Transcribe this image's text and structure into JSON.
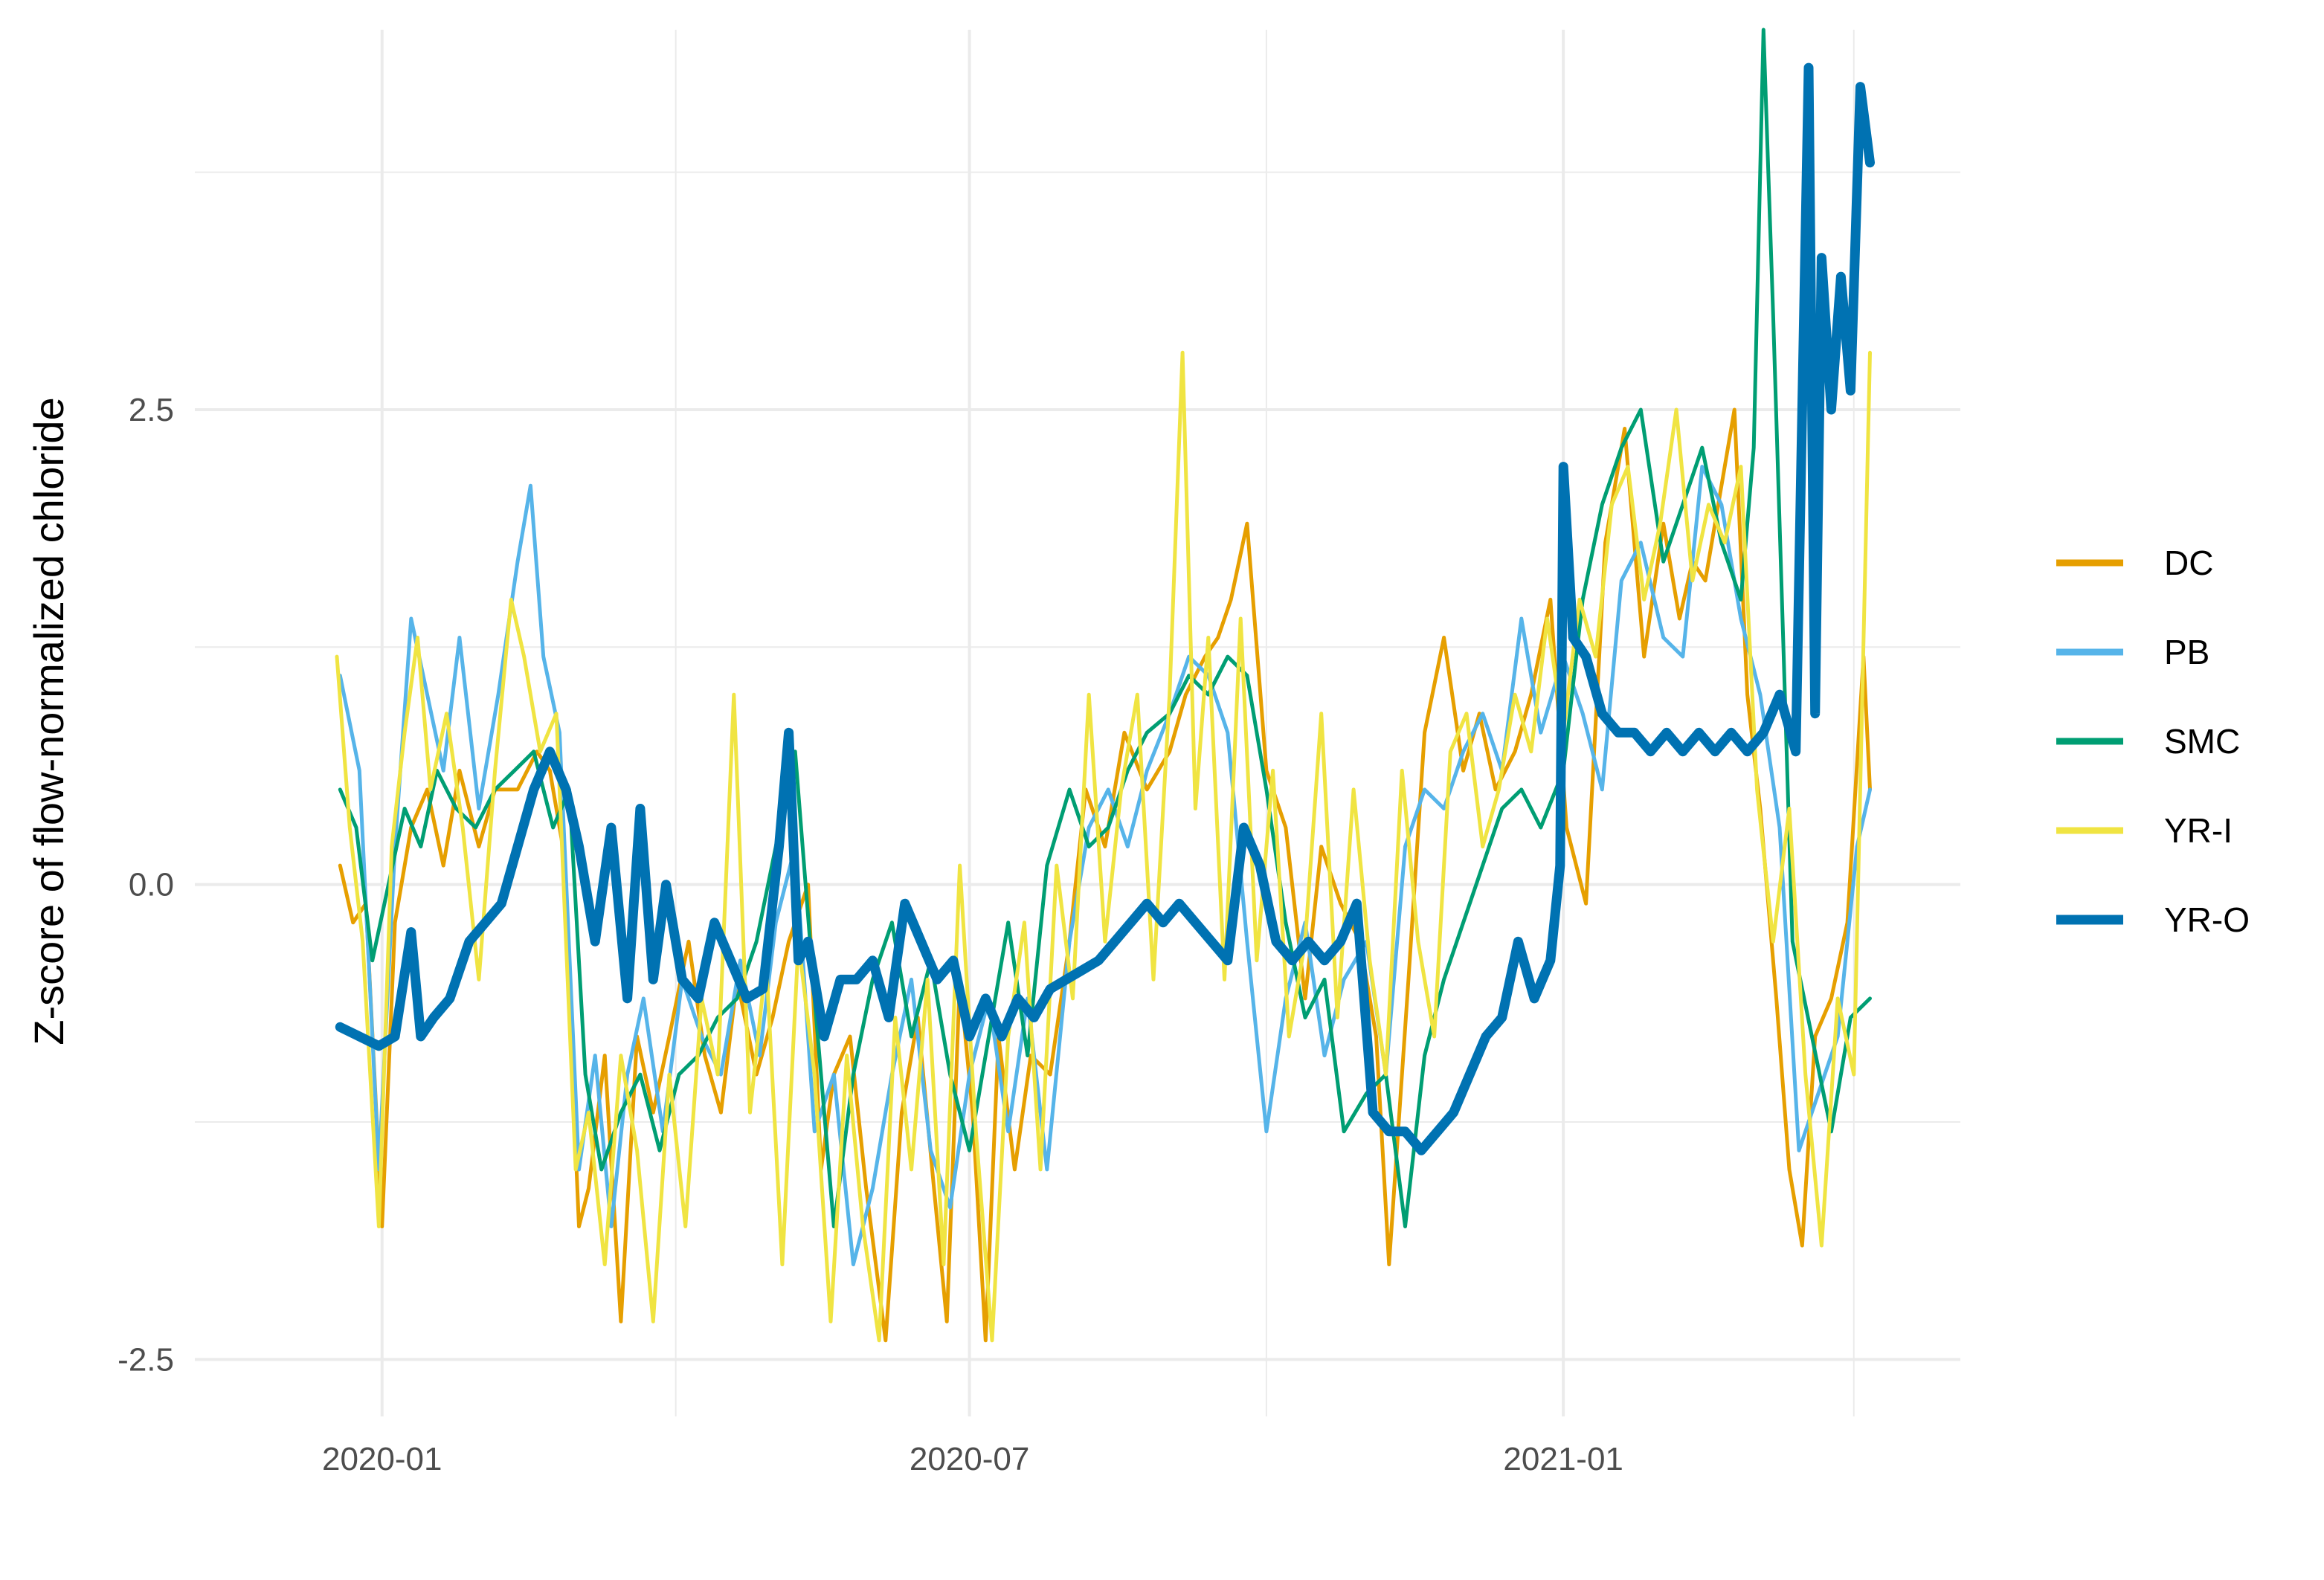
{
  "chart_data": {
    "type": "line",
    "xlabel": "",
    "ylabel": "Z-score of flow-normalized chloride",
    "x_ticks": [
      "2020-01",
      "2020-07",
      "2021-01"
    ],
    "x_tick_dates": [
      "2020-01-01",
      "2020-07-01",
      "2021-01-01"
    ],
    "x_minor_dates": [
      "2020-04-01",
      "2020-10-01",
      "2021-04-01"
    ],
    "xlim": [
      "2019-11-04",
      "2021-05-04"
    ],
    "y_ticks": [
      -2.5,
      0.0,
      2.5
    ],
    "y_tick_labels": [
      "-2.5",
      "0.0",
      "2.5"
    ],
    "y_minor": [
      -1.25,
      1.25,
      3.75
    ],
    "ylim": [
      -2.8,
      4.5
    ],
    "grid": true,
    "legend_position": "right",
    "series": [
      {
        "name": "DC",
        "color": "#E69F00",
        "x": [
          "2019-12-19",
          "2019-12-23",
          "2019-12-27",
          "2020-01-01",
          "2020-01-05",
          "2020-01-10",
          "2020-01-15",
          "2020-01-20",
          "2020-01-25",
          "2020-01-31",
          "2020-02-05",
          "2020-02-12",
          "2020-02-18",
          "2020-02-22",
          "2020-02-26",
          "2020-03-02",
          "2020-03-05",
          "2020-03-10",
          "2020-03-15",
          "2020-03-20",
          "2020-03-25",
          "2020-03-30",
          "2020-04-05",
          "2020-04-10",
          "2020-04-15",
          "2020-04-20",
          "2020-04-26",
          "2020-05-01",
          "2020-05-06",
          "2020-05-12",
          "2020-05-16",
          "2020-05-20",
          "2020-05-25",
          "2020-05-30",
          "2020-06-05",
          "2020-06-10",
          "2020-06-15",
          "2020-06-20",
          "2020-06-24",
          "2020-06-28",
          "2020-07-02",
          "2020-07-06",
          "2020-07-10",
          "2020-07-15",
          "2020-07-20",
          "2020-07-26",
          "2020-08-01",
          "2020-08-06",
          "2020-08-12",
          "2020-08-18",
          "2020-08-25",
          "2020-09-01",
          "2020-09-06",
          "2020-09-12",
          "2020-09-16",
          "2020-09-20",
          "2020-09-25",
          "2020-10-01",
          "2020-10-07",
          "2020-10-13",
          "2020-10-18",
          "2020-10-24",
          "2020-10-30",
          "2020-11-04",
          "2020-11-08",
          "2020-11-14",
          "2020-11-19",
          "2020-11-25",
          "2020-12-01",
          "2020-12-06",
          "2020-12-11",
          "2020-12-17",
          "2020-12-22",
          "2020-12-28",
          "2021-01-02",
          "2021-01-08",
          "2021-01-14",
          "2021-01-20",
          "2021-01-26",
          "2021-02-01",
          "2021-02-06",
          "2021-02-10",
          "2021-02-14",
          "2021-02-19",
          "2021-02-23",
          "2021-02-27",
          "2021-03-03",
          "2021-03-08",
          "2021-03-12",
          "2021-03-16",
          "2021-03-20",
          "2021-03-25",
          "2021-03-30",
          "2021-04-04",
          "2021-04-06"
        ],
        "values": [
          0.1,
          -0.2,
          -0.1,
          -1.8,
          -0.2,
          0.3,
          0.5,
          0.1,
          0.6,
          0.2,
          0.5,
          0.5,
          0.7,
          0.6,
          0.2,
          -1.8,
          -1.6,
          -0.9,
          -2.3,
          -0.8,
          -1.2,
          -0.8,
          -0.3,
          -0.9,
          -1.2,
          -0.5,
          -1.0,
          -0.7,
          -0.3,
          0.0,
          -1.5,
          -1.0,
          -0.8,
          -1.6,
          -2.4,
          -1.2,
          -0.7,
          -1.6,
          -2.3,
          -0.5,
          -1.2,
          -2.4,
          -0.8,
          -1.5,
          -0.9,
          -1.0,
          -0.3,
          0.5,
          0.2,
          0.8,
          0.5,
          0.7,
          1.0,
          1.2,
          1.3,
          1.5,
          1.9,
          0.6,
          0.3,
          -0.6,
          0.2,
          -0.1,
          -0.3,
          -0.8,
          -2.0,
          -0.5,
          0.8,
          1.3,
          0.6,
          0.9,
          0.5,
          0.7,
          1.0,
          1.5,
          0.3,
          -0.1,
          1.8,
          2.4,
          1.2,
          1.9,
          1.4,
          1.7,
          1.6,
          2.1,
          2.5,
          1.0,
          0.4,
          -0.6,
          -1.5,
          -1.9,
          -0.8,
          -0.6,
          -0.2,
          1.2,
          0.5
        ]
      },
      {
        "name": "PB",
        "color": "#56B4E9",
        "x": [
          "2019-12-19",
          "2019-12-25",
          "2019-12-31",
          "2020-01-05",
          "2020-01-10",
          "2020-01-15",
          "2020-01-20",
          "2020-01-25",
          "2020-01-31",
          "2020-02-06",
          "2020-02-12",
          "2020-02-16",
          "2020-02-20",
          "2020-02-25",
          "2020-03-02",
          "2020-03-07",
          "2020-03-12",
          "2020-03-17",
          "2020-03-22",
          "2020-03-28",
          "2020-04-03",
          "2020-04-09",
          "2020-04-15",
          "2020-04-21",
          "2020-04-27",
          "2020-05-02",
          "2020-05-08",
          "2020-05-14",
          "2020-05-20",
          "2020-05-26",
          "2020-06-01",
          "2020-06-07",
          "2020-06-13",
          "2020-06-19",
          "2020-06-25",
          "2020-07-01",
          "2020-07-07",
          "2020-07-13",
          "2020-07-19",
          "2020-07-25",
          "2020-08-01",
          "2020-08-07",
          "2020-08-13",
          "2020-08-19",
          "2020-08-25",
          "2020-09-01",
          "2020-09-07",
          "2020-09-13",
          "2020-09-19",
          "2020-09-25",
          "2020-10-01",
          "2020-10-07",
          "2020-10-13",
          "2020-10-19",
          "2020-10-25",
          "2020-11-01",
          "2020-11-07",
          "2020-11-13",
          "2020-11-19",
          "2020-11-25",
          "2020-12-01",
          "2020-12-07",
          "2020-12-13",
          "2020-12-19",
          "2020-12-25",
          "2021-01-01",
          "2021-01-07",
          "2021-01-13",
          "2021-01-19",
          "2021-01-25",
          "2021-02-01",
          "2021-02-07",
          "2021-02-13",
          "2021-02-19",
          "2021-02-25",
          "2021-03-03",
          "2021-03-09",
          "2021-03-15",
          "2021-03-21",
          "2021-03-27",
          "2021-04-02",
          "2021-04-06"
        ],
        "values": [
          1.1,
          0.6,
          -1.5,
          0.2,
          1.4,
          1.0,
          0.6,
          1.3,
          0.4,
          1.0,
          1.7,
          2.1,
          1.2,
          0.8,
          -1.5,
          -0.9,
          -1.8,
          -1.0,
          -0.6,
          -1.3,
          -0.5,
          -0.8,
          -1.0,
          -0.4,
          -0.9,
          -0.2,
          0.2,
          -1.3,
          -1.0,
          -2.0,
          -1.6,
          -1.0,
          -0.5,
          -1.4,
          -1.7,
          -1.0,
          -0.6,
          -1.3,
          -0.6,
          -1.5,
          -0.3,
          0.3,
          0.5,
          0.2,
          0.6,
          0.9,
          1.2,
          1.1,
          0.8,
          -0.3,
          -1.3,
          -0.6,
          -0.2,
          -0.9,
          -0.5,
          -0.3,
          -1.0,
          0.2,
          0.5,
          0.4,
          0.7,
          0.9,
          0.6,
          1.4,
          0.8,
          1.2,
          0.9,
          0.5,
          1.6,
          1.8,
          1.3,
          1.2,
          2.2,
          2.0,
          1.4,
          1.0,
          0.3,
          -1.4,
          -1.1,
          -0.8,
          0.2,
          0.5
        ]
      },
      {
        "name": "SMC",
        "color": "#009E73",
        "x": [
          "2019-12-19",
          "2019-12-24",
          "2019-12-29",
          "2020-01-03",
          "2020-01-08",
          "2020-01-13",
          "2020-01-18",
          "2020-01-24",
          "2020-01-30",
          "2020-02-05",
          "2020-02-11",
          "2020-02-17",
          "2020-02-23",
          "2020-02-28",
          "2020-03-04",
          "2020-03-09",
          "2020-03-15",
          "2020-03-21",
          "2020-03-27",
          "2020-04-02",
          "2020-04-08",
          "2020-04-14",
          "2020-04-20",
          "2020-04-26",
          "2020-05-02",
          "2020-05-08",
          "2020-05-14",
          "2020-05-20",
          "2020-05-26",
          "2020-06-01",
          "2020-06-07",
          "2020-06-13",
          "2020-06-19",
          "2020-06-25",
          "2020-07-01",
          "2020-07-07",
          "2020-07-13",
          "2020-07-19",
          "2020-07-25",
          "2020-08-01",
          "2020-08-07",
          "2020-08-13",
          "2020-08-19",
          "2020-08-25",
          "2020-09-01",
          "2020-09-07",
          "2020-09-13",
          "2020-09-19",
          "2020-09-25",
          "2020-10-01",
          "2020-10-07",
          "2020-10-13",
          "2020-10-19",
          "2020-10-25",
          "2020-11-01",
          "2020-11-07",
          "2020-11-13",
          "2020-11-19",
          "2020-11-25",
          "2020-12-01",
          "2020-12-07",
          "2020-12-13",
          "2020-12-19",
          "2020-12-25",
          "2021-01-01",
          "2021-01-07",
          "2021-01-13",
          "2021-01-19",
          "2021-01-25",
          "2021-02-01",
          "2021-02-07",
          "2021-02-13",
          "2021-02-19",
          "2021-02-25",
          "2021-03-01",
          "2021-03-04",
          "2021-03-07",
          "2021-03-13",
          "2021-03-19",
          "2021-03-25",
          "2021-03-31",
          "2021-04-06"
        ],
        "values": [
          0.5,
          0.3,
          -0.4,
          0.0,
          0.4,
          0.2,
          0.6,
          0.4,
          0.3,
          0.5,
          0.6,
          0.7,
          0.3,
          0.5,
          -1.0,
          -1.5,
          -1.2,
          -1.0,
          -1.4,
          -1.0,
          -0.9,
          -0.7,
          -0.6,
          -0.3,
          0.2,
          0.7,
          -0.6,
          -1.8,
          -1.0,
          -0.5,
          -0.2,
          -0.8,
          -0.4,
          -1.0,
          -1.4,
          -0.8,
          -0.2,
          -0.9,
          0.1,
          0.5,
          0.2,
          0.3,
          0.6,
          0.8,
          0.9,
          1.1,
          1.0,
          1.2,
          1.1,
          0.5,
          -0.2,
          -0.7,
          -0.5,
          -1.3,
          -1.1,
          -1.0,
          -1.8,
          -0.9,
          -0.5,
          -0.2,
          0.1,
          0.4,
          0.5,
          0.3,
          0.6,
          1.5,
          2.0,
          2.3,
          2.5,
          1.7,
          2.0,
          2.3,
          1.8,
          1.5,
          2.3,
          4.5,
          3.0,
          -0.3,
          -0.8,
          -1.3,
          -0.7,
          -0.6
        ]
      },
      {
        "name": "YR-I",
        "color": "#F0E442",
        "x": [
          "2019-12-18",
          "2019-12-22",
          "2019-12-26",
          "2019-12-31",
          "2020-01-04",
          "2020-01-08",
          "2020-01-12",
          "2020-01-16",
          "2020-01-21",
          "2020-01-26",
          "2020-01-31",
          "2020-02-05",
          "2020-02-10",
          "2020-02-14",
          "2020-02-19",
          "2020-02-24",
          "2020-03-01",
          "2020-03-05",
          "2020-03-10",
          "2020-03-15",
          "2020-03-20",
          "2020-03-25",
          "2020-03-30",
          "2020-04-04",
          "2020-04-09",
          "2020-04-14",
          "2020-04-19",
          "2020-04-24",
          "2020-04-29",
          "2020-05-04",
          "2020-05-09",
          "2020-05-14",
          "2020-05-19",
          "2020-05-24",
          "2020-05-29",
          "2020-06-03",
          "2020-06-08",
          "2020-06-13",
          "2020-06-18",
          "2020-06-23",
          "2020-06-28",
          "2020-07-03",
          "2020-07-08",
          "2020-07-13",
          "2020-07-18",
          "2020-07-23",
          "2020-07-28",
          "2020-08-02",
          "2020-08-07",
          "2020-08-12",
          "2020-08-17",
          "2020-08-22",
          "2020-08-27",
          "2020-09-01",
          "2020-09-05",
          "2020-09-09",
          "2020-09-13",
          "2020-09-18",
          "2020-09-23",
          "2020-09-28",
          "2020-10-03",
          "2020-10-08",
          "2020-10-13",
          "2020-10-18",
          "2020-10-23",
          "2020-10-28",
          "2020-11-02",
          "2020-11-07",
          "2020-11-12",
          "2020-11-17",
          "2020-11-22",
          "2020-11-27",
          "2020-12-02",
          "2020-12-07",
          "2020-12-12",
          "2020-12-17",
          "2020-12-22",
          "2020-12-27",
          "2021-01-01",
          "2021-01-06",
          "2021-01-11",
          "2021-01-16",
          "2021-01-21",
          "2021-01-26",
          "2021-01-31",
          "2021-02-05",
          "2021-02-10",
          "2021-02-15",
          "2021-02-20",
          "2021-02-25",
          "2021-03-02",
          "2021-03-07",
          "2021-03-12",
          "2021-03-17",
          "2021-03-22",
          "2021-03-27",
          "2021-04-01",
          "2021-04-06"
        ],
        "values": [
          1.2,
          0.3,
          -0.3,
          -1.8,
          0.2,
          0.8,
          1.3,
          0.5,
          0.9,
          0.3,
          -0.5,
          0.6,
          1.5,
          1.2,
          0.7,
          0.9,
          -1.5,
          -1.2,
          -2.0,
          -0.9,
          -1.4,
          -2.3,
          -1.0,
          -1.8,
          -0.6,
          -1.0,
          1.0,
          -1.2,
          -0.4,
          -2.0,
          -0.3,
          -1.0,
          -2.3,
          -0.9,
          -1.8,
          -2.4,
          -0.7,
          -1.5,
          -0.5,
          -2.0,
          0.1,
          -1.3,
          -2.4,
          -0.8,
          -0.2,
          -1.5,
          0.1,
          -0.6,
          1.0,
          -0.3,
          0.5,
          1.0,
          -0.5,
          1.0,
          2.8,
          0.4,
          1.3,
          -0.5,
          1.4,
          -0.4,
          0.6,
          -0.8,
          -0.3,
          0.9,
          -0.7,
          0.5,
          -0.4,
          -1.0,
          0.6,
          -0.3,
          -0.8,
          0.7,
          0.9,
          0.2,
          0.5,
          1.0,
          0.7,
          1.4,
          0.8,
          1.5,
          1.2,
          2.0,
          2.2,
          1.5,
          1.9,
          2.5,
          1.6,
          2.0,
          1.8,
          2.2,
          0.5,
          -0.3,
          0.4,
          -1.0,
          -1.9,
          -0.6,
          -1.0,
          2.8
        ]
      },
      {
        "name": "YR-O",
        "color": "#0072B2",
        "x": [
          "2019-12-19",
          "2019-12-25",
          "2019-12-31",
          "2020-01-05",
          "2020-01-10",
          "2020-01-13",
          "2020-01-17",
          "2020-01-22",
          "2020-01-28",
          "2020-02-02",
          "2020-02-07",
          "2020-02-12",
          "2020-02-17",
          "2020-02-22",
          "2020-02-27",
          "2020-03-02",
          "2020-03-07",
          "2020-03-12",
          "2020-03-17",
          "2020-03-21",
          "2020-03-25",
          "2020-03-29",
          "2020-04-03",
          "2020-04-08",
          "2020-04-13",
          "2020-04-18",
          "2020-04-23",
          "2020-04-28",
          "2020-05-03",
          "2020-05-06",
          "2020-05-09",
          "2020-05-12",
          "2020-05-17",
          "2020-05-22",
          "2020-05-27",
          "2020-06-01",
          "2020-06-06",
          "2020-06-11",
          "2020-06-16",
          "2020-06-21",
          "2020-06-26",
          "2020-07-01",
          "2020-07-06",
          "2020-07-11",
          "2020-07-16",
          "2020-07-21",
          "2020-07-26",
          "2020-07-31",
          "2020-08-05",
          "2020-08-10",
          "2020-08-15",
          "2020-08-20",
          "2020-08-25",
          "2020-08-30",
          "2020-09-04",
          "2020-09-09",
          "2020-09-14",
          "2020-09-19",
          "2020-09-24",
          "2020-09-29",
          "2020-10-04",
          "2020-10-09",
          "2020-10-14",
          "2020-10-19",
          "2020-10-24",
          "2020-10-29",
          "2020-11-03",
          "2020-11-08",
          "2020-11-13",
          "2020-11-18",
          "2020-11-23",
          "2020-11-28",
          "2020-12-03",
          "2020-12-08",
          "2020-12-13",
          "2020-12-18",
          "2020-12-23",
          "2020-12-28",
          "2020-12-31",
          "2021-01-01",
          "2021-01-04",
          "2021-01-08",
          "2021-01-13",
          "2021-01-18",
          "2021-01-23",
          "2021-01-28",
          "2021-02-02",
          "2021-02-07",
          "2021-02-12",
          "2021-02-17",
          "2021-02-22",
          "2021-02-27",
          "2021-03-04",
          "2021-03-09",
          "2021-03-14",
          "2021-03-18",
          "2021-03-20",
          "2021-03-22",
          "2021-03-25",
          "2021-03-28",
          "2021-03-31",
          "2021-04-03",
          "2021-04-06"
        ],
        "values": [
          -0.75,
          -0.8,
          -0.85,
          -0.8,
          -0.25,
          -0.8,
          -0.7,
          -0.6,
          -0.3,
          -0.2,
          -0.1,
          0.2,
          0.5,
          0.7,
          0.5,
          0.2,
          -0.3,
          0.3,
          -0.6,
          0.4,
          -0.5,
          0.0,
          -0.5,
          -0.6,
          -0.2,
          -0.4,
          -0.6,
          -0.55,
          0.2,
          0.8,
          -0.4,
          -0.3,
          -0.8,
          -0.5,
          -0.5,
          -0.4,
          -0.7,
          -0.1,
          -0.3,
          -0.5,
          -0.4,
          -0.8,
          -0.6,
          -0.8,
          -0.6,
          -0.7,
          -0.55,
          -0.5,
          -0.45,
          -0.4,
          -0.3,
          -0.2,
          -0.1,
          -0.2,
          -0.1,
          -0.2,
          -0.3,
          -0.4,
          0.3,
          0.1,
          -0.3,
          -0.4,
          -0.3,
          -0.4,
          -0.3,
          -0.1,
          -1.2,
          -1.3,
          -1.3,
          -1.4,
          -1.3,
          -1.2,
          -1.0,
          -0.8,
          -0.7,
          -0.3,
          -0.6,
          -0.4,
          0.1,
          2.2,
          1.3,
          1.2,
          0.9,
          0.8,
          0.8,
          0.7,
          0.8,
          0.7,
          0.8,
          0.7,
          0.8,
          0.7,
          0.8,
          1.0,
          0.7,
          4.3,
          0.9,
          3.3,
          2.5,
          3.2,
          2.6,
          4.2,
          3.8
        ]
      }
    ]
  }
}
